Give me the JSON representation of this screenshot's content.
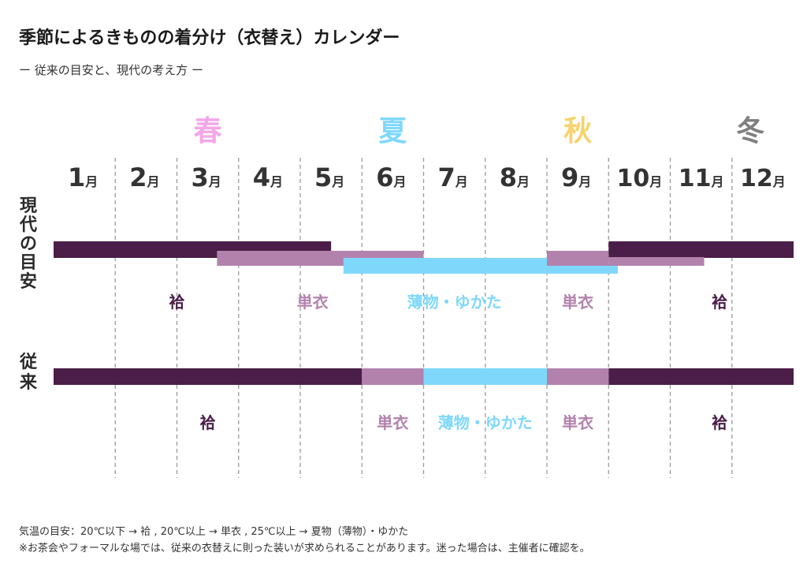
{
  "title": "季節によるきものの着分け（衣替え）カレンダー",
  "subtitle": "ー 従来の目安と、現代の考え方 ー",
  "footer": {
    "line1": "気温の目安：20℃以下 → 袷 , 20℃以上 → 単衣 , 25℃以上 → 夏物（薄物）・ゆかた",
    "line2": "※お茶会やフォーマルな場では、従来の衣替えに則った装いが求められることがあります。迷った場合は、主催者に確認を。"
  },
  "colors": {
    "awase": "#4a1e48",
    "hitoe": "#b282ad",
    "usumono": "#7fd8fb",
    "spring": "#f3a6e8",
    "summer": "#7fd8fb",
    "autumn": "#f6d36b",
    "winter": "#808080",
    "month": "#333333"
  },
  "chart_data": {
    "type": "timeline",
    "months": [
      "1",
      "2",
      "3",
      "4",
      "5",
      "6",
      "7",
      "8",
      "9",
      "10",
      "11",
      "12"
    ],
    "month_unit": "月",
    "seasons": [
      {
        "label": "春",
        "month": 3.5,
        "color": "#f3a6e8"
      },
      {
        "label": "夏",
        "month": 6.5,
        "color": "#7fd8fb"
      },
      {
        "label": "秋",
        "month": 9.5,
        "color": "#f6d36b"
      },
      {
        "label": "冬",
        "month": 12.3,
        "color": "#808080"
      }
    ],
    "rows": [
      {
        "name": "現代の目安",
        "bars": [
          {
            "type": "袷",
            "start": 1.0,
            "end": 5.5,
            "lane": 0,
            "color": "#4a1e48"
          },
          {
            "type": "袷",
            "start": 10.0,
            "end": 13.0,
            "lane": 0,
            "color": "#4a1e48"
          },
          {
            "type": "単衣",
            "start": 3.65,
            "end": 7.0,
            "lane": 1,
            "color": "#b282ad"
          },
          {
            "type": "単衣",
            "start": 9.0,
            "end": 10.0,
            "lane": 1,
            "color": "#b282ad"
          },
          {
            "type": "単衣",
            "start": 10.0,
            "end": 11.55,
            "lane": 2,
            "color": "#b282ad"
          },
          {
            "type": "薄物・ゆかた",
            "start": 5.7,
            "end": 9.0,
            "lane": 3,
            "color": "#7fd8fb"
          },
          {
            "type": "薄物・ゆかた",
            "start": 9.0,
            "end": 10.15,
            "lane": 4,
            "color": "#7fd8fb"
          }
        ],
        "labels": [
          {
            "text": "袷",
            "month": 3.0,
            "color": "#4a1e48"
          },
          {
            "text": "単衣",
            "month": 5.2,
            "color": "#b282ad"
          },
          {
            "text": "薄物・ゆかた",
            "month": 7.5,
            "color": "#7fd8fb"
          },
          {
            "text": "単衣",
            "month": 9.5,
            "color": "#b282ad"
          },
          {
            "text": "袷",
            "month": 11.8,
            "color": "#4a1e48"
          }
        ]
      },
      {
        "name": "従来",
        "bars": [
          {
            "type": "袷",
            "start": 1.0,
            "end": 6.0,
            "lane": 0,
            "color": "#4a1e48"
          },
          {
            "type": "単衣",
            "start": 6.0,
            "end": 7.0,
            "lane": 0,
            "color": "#b282ad"
          },
          {
            "type": "薄物・ゆかた",
            "start": 7.0,
            "end": 9.0,
            "lane": 0,
            "color": "#7fd8fb"
          },
          {
            "type": "単衣",
            "start": 9.0,
            "end": 10.0,
            "lane": 0,
            "color": "#b282ad"
          },
          {
            "type": "袷",
            "start": 10.0,
            "end": 13.0,
            "lane": 0,
            "color": "#4a1e48"
          }
        ],
        "labels": [
          {
            "text": "袷",
            "month": 3.5,
            "color": "#4a1e48"
          },
          {
            "text": "単衣",
            "month": 6.5,
            "color": "#b282ad"
          },
          {
            "text": "薄物・ゆかた",
            "month": 8.0,
            "color": "#7fd8fb"
          },
          {
            "text": "単衣",
            "month": 9.5,
            "color": "#b282ad"
          },
          {
            "text": "袷",
            "month": 11.8,
            "color": "#4a1e48"
          }
        ]
      }
    ]
  }
}
